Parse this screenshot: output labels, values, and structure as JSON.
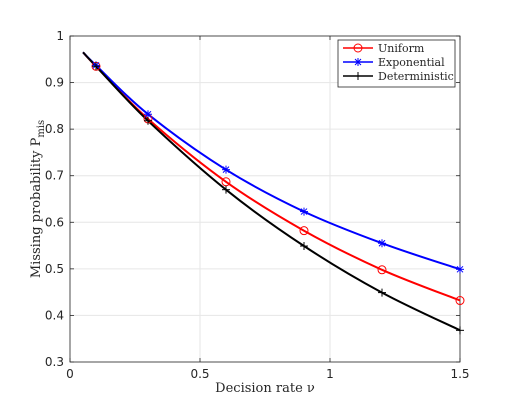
{
  "chart_data": {
    "type": "line",
    "xlabel": "Decision rate ν",
    "ylabel": "Missing probability P",
    "ylabel_sub": "mis",
    "xlim": [
      0,
      1.5
    ],
    "ylim": [
      0.3,
      1
    ],
    "x_ticks": [
      "0",
      "0.5",
      "1",
      "1.5"
    ],
    "y_ticks": [
      "0.3",
      "0.4",
      "0.5",
      "0.6",
      "0.7",
      "0.8",
      "0.9",
      "1"
    ],
    "grid": true,
    "legend_position": "top-right",
    "series": [
      {
        "name": "Uniform",
        "color": "#ff0000",
        "marker": "circle",
        "curve": {
          "x": [
            0.05,
            0.1,
            0.3,
            0.6,
            0.9,
            1.2,
            1.5
          ],
          "y": [
            0.965,
            0.935,
            0.822,
            0.687,
            0.582,
            0.498,
            0.432
          ]
        },
        "points": {
          "x": [
            0.1,
            0.3,
            0.6,
            0.9,
            1.2,
            1.5
          ],
          "y": [
            0.935,
            0.822,
            0.687,
            0.582,
            0.498,
            0.432
          ]
        }
      },
      {
        "name": "Exponential",
        "color": "#0000ff",
        "marker": "star",
        "curve": {
          "x": [
            0.05,
            0.1,
            0.3,
            0.6,
            0.9,
            1.2,
            1.5
          ],
          "y": [
            0.965,
            0.937,
            0.832,
            0.713,
            0.623,
            0.555,
            0.499
          ]
        },
        "points": {
          "x": [
            0.1,
            0.3,
            0.6,
            0.9,
            1.2,
            1.5
          ],
          "y": [
            0.937,
            0.832,
            0.713,
            0.623,
            0.555,
            0.499
          ]
        }
      },
      {
        "name": "Deterministic",
        "color": "#000000",
        "marker": "plus",
        "curve": {
          "x": [
            0.05,
            0.1,
            0.3,
            0.6,
            0.9,
            1.2,
            1.5
          ],
          "y": [
            0.965,
            0.935,
            0.818,
            0.67,
            0.549,
            0.449,
            0.368
          ]
        },
        "points": {
          "x": [
            0.1,
            0.3,
            0.6,
            0.9,
            1.2,
            1.5
          ],
          "y": [
            0.935,
            0.818,
            0.67,
            0.549,
            0.449,
            0.368
          ]
        }
      }
    ]
  }
}
